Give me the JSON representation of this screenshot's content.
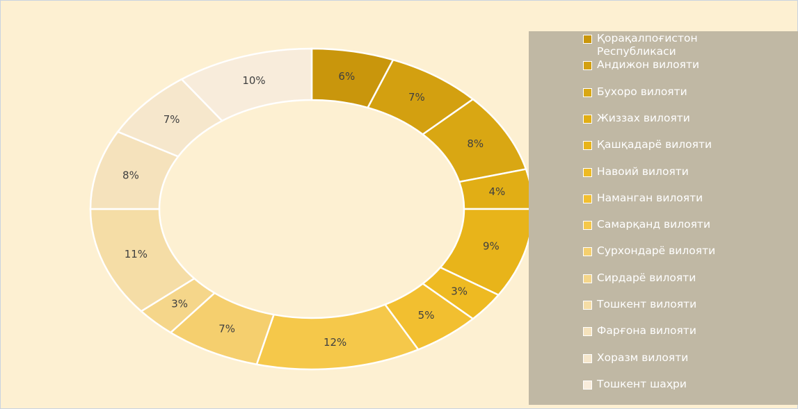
{
  "chart_data": {
    "type": "donut",
    "categories": [
      "Қорақалпоғистон Республикаси",
      "Андижон вилояти",
      "Бухоро вилояти",
      "Жиззах вилояти",
      "Қашқадарё вилояти",
      "Навоий вилояти",
      "Наманган вилояти",
      "Самарқанд вилояти",
      "Сурхондарё вилояти",
      "Сирдарё вилояти",
      "Тошкент вилояти",
      "Фарғона вилояти",
      "Хоразм вилояти",
      "Тошкент шаҳри"
    ],
    "values": [
      6,
      7,
      8,
      4,
      9,
      3,
      5,
      12,
      7,
      3,
      11,
      8,
      7,
      10
    ],
    "value_labels": [
      "6%",
      "7%",
      "8%",
      "4%",
      "9%",
      "3%",
      "5%",
      "12%",
      "7%",
      "3%",
      "11%",
      "8%",
      "7%",
      "10%"
    ],
    "colors": [
      "#c9960c",
      "#d3a010",
      "#d9a713",
      "#e1ae15",
      "#e8b41a",
      "#eeba22",
      "#f2bf30",
      "#f5c84a",
      "#f5cf6e",
      "#f5d68a",
      "#f5dda6",
      "#f5e2bc",
      "#f6e7cc",
      "#f8ecdb"
    ],
    "legend": "right"
  }
}
